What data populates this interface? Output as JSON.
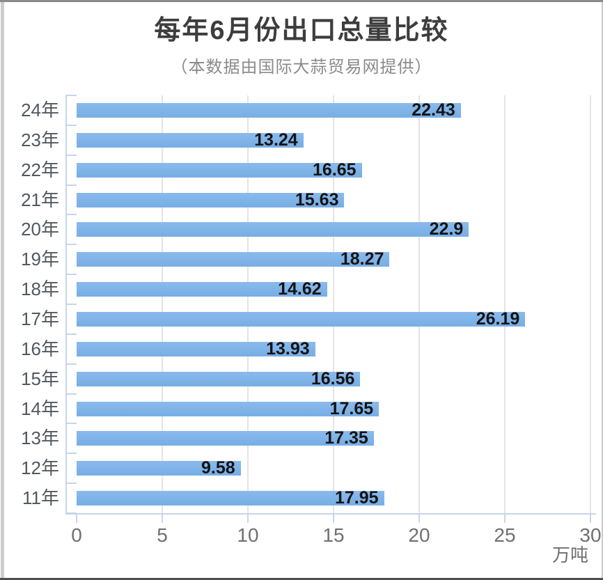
{
  "chart_data": {
    "type": "bar",
    "orientation": "horizontal",
    "title": "每年6月份出口总量比较",
    "subtitle": "（本数据由国际大蒜贸易网提供）",
    "categories": [
      "24年",
      "23年",
      "22年",
      "21年",
      "20年",
      "19年",
      "18年",
      "17年",
      "16年",
      "15年",
      "14年",
      "13年",
      "12年",
      "11年"
    ],
    "values": [
      22.43,
      13.24,
      16.65,
      15.63,
      22.9,
      18.27,
      14.62,
      26.19,
      13.93,
      16.56,
      17.65,
      17.35,
      9.58,
      17.95
    ],
    "value_labels": [
      "22.43",
      "13.24",
      "16.65",
      "15.63",
      "22.9",
      "18.27",
      "14.62",
      "26.19",
      "13.93",
      "16.56",
      "17.65",
      "17.35",
      "9.58",
      "17.95"
    ],
    "xlabel": "万吨",
    "x_ticks": [
      0,
      5,
      10,
      15,
      20,
      25,
      30
    ],
    "xlim": [
      0,
      30
    ],
    "grid": true,
    "legend": "none",
    "colors": {
      "bar": "#7db3e8",
      "axis": "#c5d6ea",
      "gridline": "#e4e4e4",
      "value_label": "#141414",
      "category_label": "#51585e",
      "tick_label": "#6f6f6f",
      "title": "#3d3d3d",
      "subtitle": "#8a8a8a"
    }
  }
}
